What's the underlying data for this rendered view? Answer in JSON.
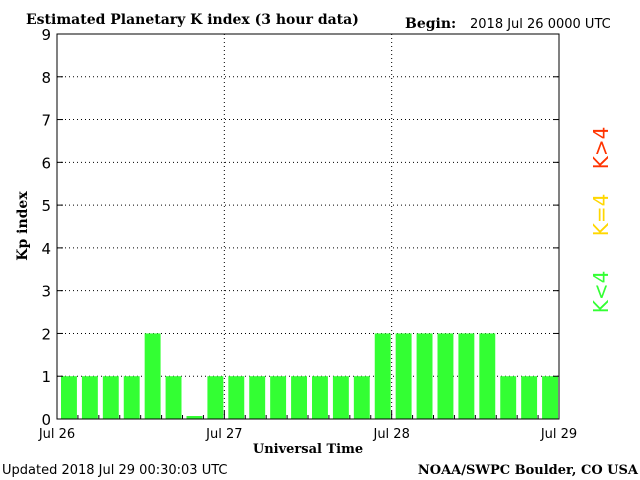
{
  "header": {
    "title": "Estimated Planetary K index (3 hour data)",
    "begin_label": "Begin:",
    "begin_value": "2018 Jul 26 0000 UTC"
  },
  "footer": {
    "updated": "Updated 2018 Jul 29 00:30:03 UTC",
    "credit": "NOAA/SWPC Boulder, CO USA"
  },
  "legend": [
    {
      "label": "K>4",
      "color": "#ff3300"
    },
    {
      "label": "K=4",
      "color": "#ffd700"
    },
    {
      "label": "K<4",
      "color": "#33ff33"
    }
  ],
  "chart_data": {
    "type": "bar",
    "title": "Estimated Planetary K index (3 hour data)",
    "xlabel": "Universal Time",
    "ylabel": "Kp index",
    "ylim": [
      0,
      9
    ],
    "y_ticks": [
      "0",
      "1",
      "2",
      "3",
      "4",
      "5",
      "6",
      "7",
      "8",
      "9"
    ],
    "x_tick_labels": [
      "Jul 26",
      "Jul 27",
      "Jul 28",
      "Jul 29"
    ],
    "grid": true,
    "bar_color": "#33ff33",
    "legend_position": "right",
    "values": [
      1,
      1,
      1,
      1,
      2,
      1,
      0.07,
      1,
      1,
      1,
      1,
      1,
      1,
      1,
      1,
      2,
      2,
      2,
      2,
      2,
      2,
      1,
      1,
      1
    ]
  }
}
